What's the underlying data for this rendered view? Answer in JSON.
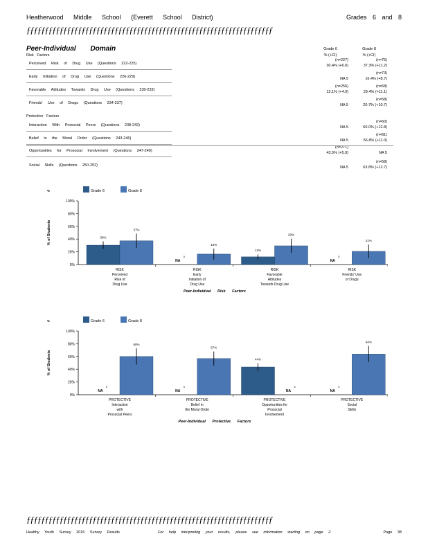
{
  "header": {
    "school": "Heatherwood Middle School (Everett School District)",
    "grades": "Grades 6 and 8",
    "rule": "ƒƒƒƒƒƒƒƒƒƒƒƒƒƒƒƒƒƒƒƒƒƒƒƒƒƒƒƒƒƒƒƒƒƒƒƒƒƒƒƒƒƒƒƒƒƒƒƒƒƒƒƒƒƒƒƒƒƒƒƒƒƒƒƒƒƒƒ"
  },
  "domain": {
    "title": "Peer-Individual Domain",
    "risk_label": "Risk Factors",
    "protective_label": "Protective Factors",
    "col_grade6": "Grade 6",
    "col_grade8": "Grade 8",
    "col_sub6": "% (+CI)",
    "col_sub8": "% (+CI)",
    "rows": [
      {
        "label": "Perceived Risk of Drug Use (Questions 222-225)",
        "n6": "(n=227)",
        "v6": "30.4% (+6.0)",
        "n8": "(n=75)",
        "v8": "37.3% (+11.2)"
      },
      {
        "label": "Early Initiation of Drug Use (Questions 226-229)",
        "n6": "",
        "v6": "NA 5",
        "n8": "(n=73)",
        "v8": "16.4% (+8.7)"
      },
      {
        "label": "Favorable Attitudes Towards Drug Use (Questions 230-233)",
        "n6": "(n=256)",
        "v6": "12.1% (+4.0)",
        "n8": "(n=68)",
        "v8": "29.4% (+11.1)"
      },
      {
        "label": "Friends' Use of Drugs (Questions 234-237)",
        "n6": "",
        "v6": "NA 5",
        "n8": "(n=58)",
        "v8": "20.7% (+10.7)"
      },
      {
        "label": "Interaction With Prosocial Peers (Questions 238-242)",
        "n6": "",
        "v6": "NA 5",
        "n8": "(n=60)",
        "v8": "60.0% (+12.8)"
      },
      {
        "label": "Belief in the Moral Order (Questions 243-246)",
        "n6": "",
        "v6": "NA 5",
        "n8": "(n=81)",
        "v8": "56.8% (+11.0)"
      },
      {
        "label": "Opportunities for Prosocial Involvement (Questions 247-249)",
        "n6": "(n=271)",
        "v6": "43.5% (+5.9)",
        "n8": "",
        "v8": "NA 5"
      },
      {
        "label": "Social Skills (Questions 250-252)",
        "n6": "",
        "v6": "NA 5",
        "n8": "(n=58)",
        "v8": "63.8% (+12.7)"
      }
    ]
  },
  "charts_common": {
    "ylabel": "% of Students",
    "legend6": "Grade 6",
    "legend8": "Grade 8",
    "color6": "#2E5C8A",
    "color8": "#4A77B4"
  },
  "chart_data": [
    {
      "type": "bar",
      "title": "Peer-Individual Risk Factors",
      "ylabel": "% of Students",
      "ylim": [
        0,
        100
      ],
      "yticks": [
        "0%",
        "20%",
        "40%",
        "60%",
        "80%",
        "100%"
      ],
      "categories": [
        "RISK Perceived Risk of Drug Use",
        "RISK Early Initiation of Drug Use",
        "RISK Favorable Attitudes Towards Drug Use",
        "RISK Friends' Use of Drugs"
      ],
      "category_lines": [
        [
          "RISK",
          "Perceived",
          "Risk of",
          "Drug Use"
        ],
        [
          "RISK",
          "Early",
          "Initiation of",
          "Drug Use"
        ],
        [
          "RISK",
          "Favorable",
          "Attitudes",
          "Towards Drug Use"
        ],
        [
          "RISK",
          "Friends' Use",
          "of Drugs"
        ]
      ],
      "series": [
        {
          "name": "Grade 6",
          "values": [
            30.4,
            null,
            12.1,
            null
          ],
          "ci": [
            6.0,
            null,
            4.0,
            null
          ],
          "labels": [
            "30%",
            "NA 5",
            "12%",
            "NA 5"
          ]
        },
        {
          "name": "Grade 8",
          "values": [
            37.3,
            16.4,
            29.4,
            20.7
          ],
          "ci": [
            11.2,
            8.7,
            11.1,
            10.7
          ],
          "labels": [
            "37%",
            "16%",
            "29%",
            "21%"
          ]
        }
      ]
    },
    {
      "type": "bar",
      "title": "Peer-Individual Protective Factors",
      "ylabel": "% of Students",
      "ylim": [
        0,
        100
      ],
      "yticks": [
        "0%",
        "20%",
        "40%",
        "60%",
        "80%",
        "100%"
      ],
      "categories": [
        "PROTECTIVE Interaction with Prosocial Peers",
        "PROTECTIVE Belief in the Moral Order",
        "PROTECTIVE Opportunities for Prosocial Involvement",
        "PROTECTIVE Social Skills"
      ],
      "category_lines": [
        [
          "PROTECTIVE",
          "Interaction",
          "with",
          "Prosocial Peers"
        ],
        [
          "PROTECTIVE",
          "Belief in",
          "the Moral Order"
        ],
        [
          "PROTECTIVE",
          "Opportunities for",
          "Prosocial",
          "Involvement"
        ],
        [
          "PROTECTIVE",
          "Social",
          "Skills"
        ]
      ],
      "series": [
        {
          "name": "Grade 6",
          "values": [
            null,
            null,
            43.5,
            null
          ],
          "ci": [
            null,
            null,
            5.9,
            null
          ],
          "labels": [
            "NA 5",
            "NA 5",
            "44%",
            "NA 5"
          ]
        },
        {
          "name": "Grade 8",
          "values": [
            60.0,
            56.8,
            null,
            63.8
          ],
          "ci": [
            12.8,
            11.0,
            null,
            12.7
          ],
          "labels": [
            "60%",
            "57%",
            "NA 5",
            "64%"
          ]
        }
      ]
    }
  ],
  "footer": {
    "left": "Healthy Youth Survey 2016 Survey Results",
    "middle": "For help interpreting your results, please see information starting on page 2.",
    "right": "Page 38"
  }
}
